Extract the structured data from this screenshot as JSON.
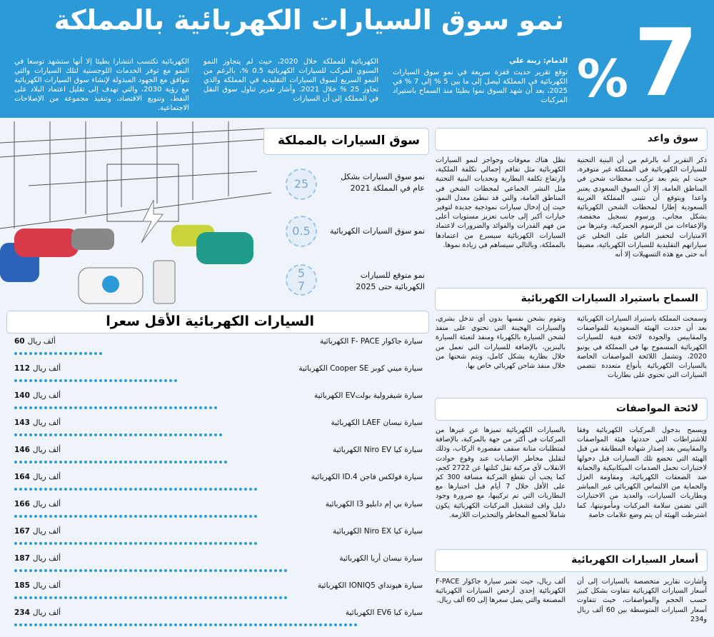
{
  "header": {
    "title": "نمو سوق السيارات الكهربائية بالمملكة",
    "big_number": "7",
    "big_symbol": "%",
    "byline": "الدمام: زينة علي",
    "intro": [
      "توقع تقرير حديث قفزة سريعة في نمو سوق السيارات الكهربائية في المملكة ليصل إلى ما بين 5 % إلى 7 % في 2025، بعد أن شهد السوق نموا بطيئا منذ السماح باستيراد المركبات",
      "الكهربائية للمملكة خلال 2020، حيث لم يتجاوز النمو السنوي المركب للسيارات الكهربائية 0.5 %، بالرغم من النمو السريع لسوق السيارات التقليدية في المملكة والذي تجاوز 25 % خلال 2021. وأشار تقرير تناول سوق النقل في المملكة إلى أن السيارات",
      "الكهربائية تكتسب انتشارا بطيئا إلا أنها ستشهد توسعا في النمو مع توفر الخدمات اللوجستية لتلك السيارات والتي تتوافق مع الجهود المبذولة لإنشاء سوق السيارات الكهربائية مع رؤية 2030، والتي تهدف إلى تقليل اعتماد البلاد على النفط، وتنويع الاقتصاد، وتنفيذ مجموعة من الإصلاحات الاجتماعية."
    ]
  },
  "market": {
    "title": "سوق السيارات بالمملكة",
    "stats": [
      {
        "value": "25",
        "label": "نمو سوق السيارات بشكل عام في المملكة 2021"
      },
      {
        "value": "0.5",
        "label": "نمو سوق السيارات الكهربائية"
      },
      {
        "value": "5",
        "value2": "7",
        "label": "نمو متوقع للسيارات الكهربائية حتى 2025"
      }
    ]
  },
  "sections": [
    {
      "title": "سوق واعد",
      "columns": [
        "ذكر التقرير أنه بالرغم من أن البنية التحتية للسيارات الكهربائية في المملكة غير متوفرة، حيث لم يتم بعد تركيب محطات شحن في المناطق العامة، إلا أن السوق السعودي يعتبر واعدا ويتوقع أن تتبنى المملكة العربية السعودية إطارا لمحطات الشحن الكهربائية بشكل مجاني، ورسوم تسجيل مخفضة، والإعفاءات من الرسوم الجمركية، وغيرها من الامتيازات لتحفيز الناس على التخلي عن سياراتهم التقليدية للسيارات الكهربائية، مضيفا أنه حتى مع هذه التسهيلات إلا أنه",
        "تظل هناك معوقات وحواجز لنمو السيارات الكهربائية مثل تفاقم إجمالي تكلفة الملكية، وارتفاع تكلفة البطارية وتحديات البنية التحتية مثل النشر الجماعي لمحطات الشحن في المناطق العامة، والتي قد تبطئ معدل النمو، حيث إن إدخال سيارات نموذجية جديدة لتوفير خيارات أكبر إلى جانب تعزيز مستويات أعلى من فهم القدرات والفوائد والضرورات لاعتماد السيارات الكهربائية سيسرع من اعتمادها بالمملكة، وبالتالي سيساهم في زيادة نموها."
      ]
    },
    {
      "title": "السماح باستيراد السيارات الكهربائية",
      "columns": [
        "وسمحت المملكة باستيراد السيارات الكهربائية بعد أن حددت الهيئة السعودية للمواصفات والمقاييس والجودة لائحة فنية للسيارات الكهربائية المسموح بها في المملكة في يونيو 2020، وتشمل اللائحة المواصفات الخاصة بالسيارات الكهربائية بأنواع متعددة تتضمن السيارات التي تحتوي على بطاريات",
        "وتقوم بشحن نفسها بدون أي تدخل بشري، والسيارات الهجينة التي تحتوي على منفذ لشحن السيارة بالكهرباء ومنفذ لتعبئة السيارة بالبنزين، بالإضافة للسيارات التي تعمل من خلال بطارية بشكل كامل، ويتم شحنها من خلال منفذ شاحن كهربائي خاص بها."
      ]
    },
    {
      "title": "لائحة المواصفات",
      "columns": [
        "ويسمح بدخول المركبات الكهربائية وفقا للاشتراطات التي حددتها هيئة المواصفات والمقاييس بعد إصدار شهادة المطابقة من قبل الهيئة التي تخضع تلك السيارات قبل دخولها لاختبارات تحمل الصدمات الميكانيكية والحماية ضد الصعقات الكهربائية، ومقاومة العزل والحماية من الالتماس الكهربائي غير المباشر وبطاريات السيارات، والعديد من الاختبارات التي تضمن سلامة المركبات ومأمونيتها، كما اشترطت الهيئة أن يتم وضع علامات خاصة",
        "بالسيارات الكهربائية تميزها عن غيرها من المركبات في أكثر من جهة بالمركبة، بالإضافة لمتطلبات متانة سقف مقصورة الركاب، وذلك لتقليل مخاطر الإصابات عند وقوع حوادث الانقلاب لأي مركبة تقل كتلتها عن 2722 كجم، كما يجب أن تقطع المركبة مسافة 300 كم على الأقل خلال 7 أيام قبل اختبارها مع البطاريات التي تم تركيبها، مع ضرورة وجود دليل واف لتشغيل المركبات الكهربائية يكون شاملاً لجميع المخاطر والتحذيرات اللازمة."
      ]
    },
    {
      "title": "أسعار السيارات الكهربائية",
      "columns": [
        "وأشارت تقارير متخصصة بالسيارات إلى أن أسعار السيارات الكهربائية تتفاوت بشكل كبير حسب الحجم والمواصفات، حيث تتفاوت أسعار السيارات المتوسطة بين 60 ألف ريال و234",
        "ألف ريال، حيث تعتبر سيارة جاكوار F-PACE الكهربائية إحدى أرخص السيارات الكهربائية المصنعة والتي يصل سعرها إلى 60 ألف ريال."
      ]
    }
  ],
  "price_list": {
    "title": "السيارات الكهربائية الأقل سعرا",
    "unit": "ألف ريال",
    "items": [
      {
        "name": "سيارة جاكوار F- PACE الكهربائية",
        "price": 60
      },
      {
        "name": "سيارة ميني كوبر Cooper SE الكهربائية",
        "price": 112
      },
      {
        "name": "سيارة شيفرولية بولتEV الكهربائية",
        "price": 140
      },
      {
        "name": "سيارة نيسان LAEF الكهربائية",
        "price": 143
      },
      {
        "name": "سيارة كيا Niro EV الكهربائية",
        "price": 146
      },
      {
        "name": "سيارة فولكس فاجن ID.4 الكهربائية",
        "price": 164
      },
      {
        "name": "سيارة بي إم دابليو I3 الكهربائية",
        "price": 166
      },
      {
        "name": "سيارة كيا Niro EX الكهربائية",
        "price": 167
      },
      {
        "name": "سيارة نيسان أريا الكهربائية",
        "price": 187
      },
      {
        "name": "سيارة هيونداي IONIQ5 الكهربائية",
        "price": 185
      },
      {
        "name": "سيارة كيا EV6 الكهربائية",
        "price": 234
      }
    ]
  }
}
